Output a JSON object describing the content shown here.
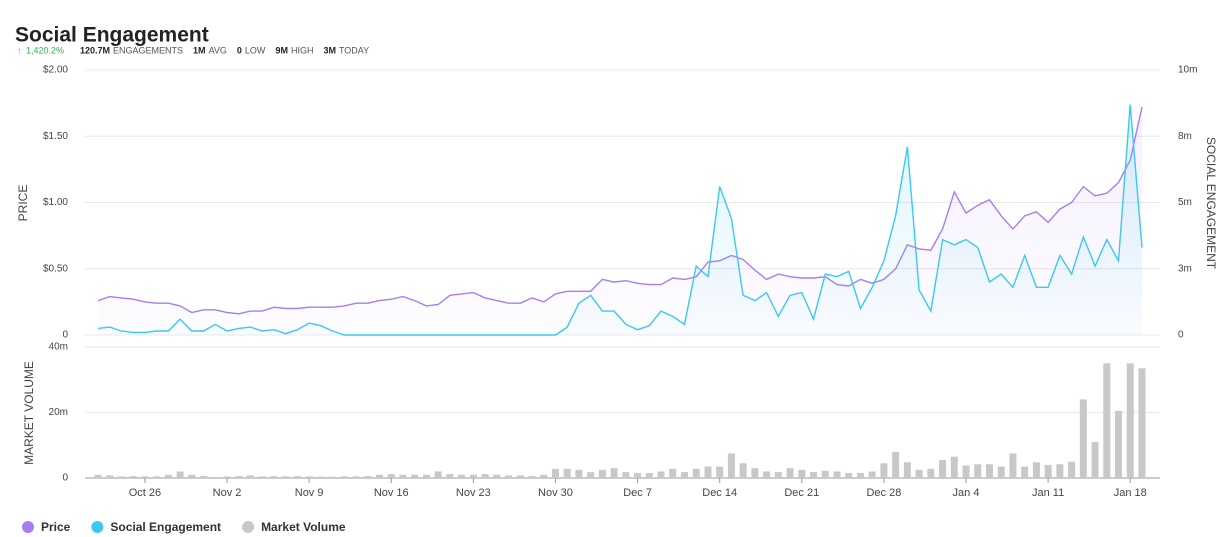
{
  "chart_data": [
    {
      "type": "line",
      "title": "Social Engagement",
      "change": "1,420.2%",
      "stats": [
        {
          "value": "120.7M",
          "label": "ENGAGEMENTS"
        },
        {
          "value": "1M",
          "label": "AVG"
        },
        {
          "value": "0",
          "label": "LOW"
        },
        {
          "value": "9M",
          "label": "HIGH"
        },
        {
          "value": "3M",
          "label": "TODAY"
        }
      ],
      "ylabel": "PRICE",
      "y2label": "SOCIAL ENGAGEMENT",
      "ylim": [
        0,
        2
      ],
      "yticks": [
        0,
        {
          "value": 0.5,
          "label": "$0.50"
        },
        {
          "value": 1,
          "label": "$1.00"
        },
        {
          "value": 1.5,
          "label": "$1.50"
        },
        {
          "value": 2,
          "label": "$2.00"
        }
      ],
      "y2lim": [
        0,
        10
      ],
      "y2ticks": [
        0,
        {
          "value": 2.5,
          "label": "3m"
        },
        {
          "value": 5,
          "label": "5m"
        },
        {
          "value": 7.5,
          "label": "8m"
        },
        {
          "value": 10,
          "label": "10m"
        }
      ],
      "grid": true,
      "series": [
        {
          "name": "Price",
          "color": "#a57ff0",
          "values": [
            0.26,
            0.29,
            0.28,
            0.27,
            0.25,
            0.24,
            0.24,
            0.22,
            0.17,
            0.19,
            0.19,
            0.17,
            0.16,
            0.18,
            0.18,
            0.21,
            0.2,
            0.2,
            0.21,
            0.21,
            0.21,
            0.22,
            0.24,
            0.24,
            0.26,
            0.27,
            0.29,
            0.26,
            0.22,
            0.23,
            0.3,
            0.31,
            0.32,
            0.28,
            0.26,
            0.24,
            0.24,
            0.28,
            0.25,
            0.31,
            0.33,
            0.33,
            0.33,
            0.42,
            0.4,
            0.41,
            0.39,
            0.38,
            0.38,
            0.43,
            0.42,
            0.44,
            0.55,
            0.56,
            0.6,
            0.57,
            0.49,
            0.42,
            0.46,
            0.44,
            0.43,
            0.43,
            0.44,
            0.38,
            0.37,
            0.42,
            0.39,
            0.42,
            0.5,
            0.68,
            0.65,
            0.64,
            0.8,
            1.08,
            0.92,
            0.98,
            1.02,
            0.9,
            0.8,
            0.9,
            0.93,
            0.85,
            0.95,
            1.0,
            1.12,
            1.05,
            1.07,
            1.15,
            1.32,
            1.72
          ]
        },
        {
          "name": "Social Engagement",
          "color": "#3cc8f0",
          "axis": "y2",
          "values": [
            0.25,
            0.3,
            0.15,
            0.1,
            0.1,
            0.15,
            0.15,
            0.6,
            0.15,
            0.15,
            0.4,
            0.15,
            0.25,
            0.3,
            0.15,
            0.2,
            0.05,
            0.2,
            0.45,
            0.35,
            0.15,
            0,
            0,
            0,
            0,
            0,
            0,
            0,
            0,
            0,
            0,
            0,
            0,
            0,
            0,
            0,
            0,
            0,
            0,
            0,
            0.3,
            1.2,
            1.5,
            0.9,
            0.9,
            0.4,
            0.2,
            0.35,
            0.9,
            0.7,
            0.4,
            2.6,
            2.2,
            5.6,
            4.4,
            1.5,
            1.3,
            1.6,
            0.7,
            1.5,
            1.6,
            0.6,
            2.3,
            2.2,
            2.4,
            1.0,
            1.8,
            2.8,
            4.5,
            7.1,
            1.7,
            0.9,
            3.6,
            3.4,
            3.6,
            3.3,
            2.0,
            2.3,
            1.8,
            3.0,
            1.8,
            1.8,
            3.0,
            2.3,
            3.7,
            2.6,
            3.6,
            2.8,
            8.7,
            3.3
          ]
        }
      ]
    },
    {
      "type": "bar",
      "ylabel": "MARKET VOLUME",
      "categories": [
        null,
        null,
        null,
        null,
        "Oct 26",
        null,
        null,
        null,
        null,
        null,
        null,
        "Nov 2",
        null,
        null,
        null,
        null,
        null,
        null,
        "Nov 9",
        null,
        null,
        null,
        null,
        null,
        null,
        "Nov 16",
        null,
        null,
        null,
        null,
        null,
        null,
        "Nov 23",
        null,
        null,
        null,
        null,
        null,
        null,
        "Nov 30",
        null,
        null,
        null,
        null,
        null,
        null,
        "Dec 7",
        null,
        null,
        null,
        null,
        null,
        null,
        "Dec 14",
        null,
        null,
        null,
        null,
        null,
        null,
        "Dec 21",
        null,
        null,
        null,
        null,
        null,
        null,
        "Dec 28",
        null,
        null,
        null,
        null,
        null,
        null,
        "Jan 4",
        null,
        null,
        null,
        null,
        null,
        null,
        "Jan 11",
        null,
        null,
        null,
        null,
        null,
        null,
        "Jan 18",
        null
      ],
      "ylim": [
        0,
        40
      ],
      "yticks": [
        0,
        {
          "value": 20,
          "label": "20m"
        },
        {
          "value": 40,
          "label": "40m"
        }
      ],
      "grid": true,
      "series": [
        {
          "name": "Market Volume",
          "color": "#c8c8c8",
          "values": [
            1,
            0.8,
            0.5,
            0.6,
            0.5,
            0.5,
            1,
            2,
            1,
            0.6,
            0.3,
            0.5,
            0.6,
            0.8,
            0.5,
            0.6,
            0.5,
            0.6,
            0.5,
            0.4,
            0.4,
            0.5,
            0.5,
            0.6,
            1,
            1.2,
            1,
            1,
            1,
            2,
            1.2,
            1,
            1,
            1.2,
            1,
            0.8,
            0.8,
            0.6,
            1,
            2.8,
            2.8,
            2.5,
            1.8,
            2.5,
            3,
            1.8,
            1.5,
            1.5,
            2,
            2.8,
            1.8,
            2.8,
            3.5,
            3.5,
            7.5,
            4.5,
            3,
            2,
            1.8,
            3,
            2.5,
            1.8,
            2.2,
            2,
            1.5,
            1.5,
            2,
            4.5,
            8,
            4.8,
            2.5,
            2.8,
            5.5,
            6.5,
            3.8,
            4.2,
            4.2,
            3.5,
            7.5,
            3.5,
            4.8,
            4,
            4.2,
            5,
            24,
            11,
            35,
            20.5,
            35,
            33.5
          ]
        }
      ]
    }
  ]
}
